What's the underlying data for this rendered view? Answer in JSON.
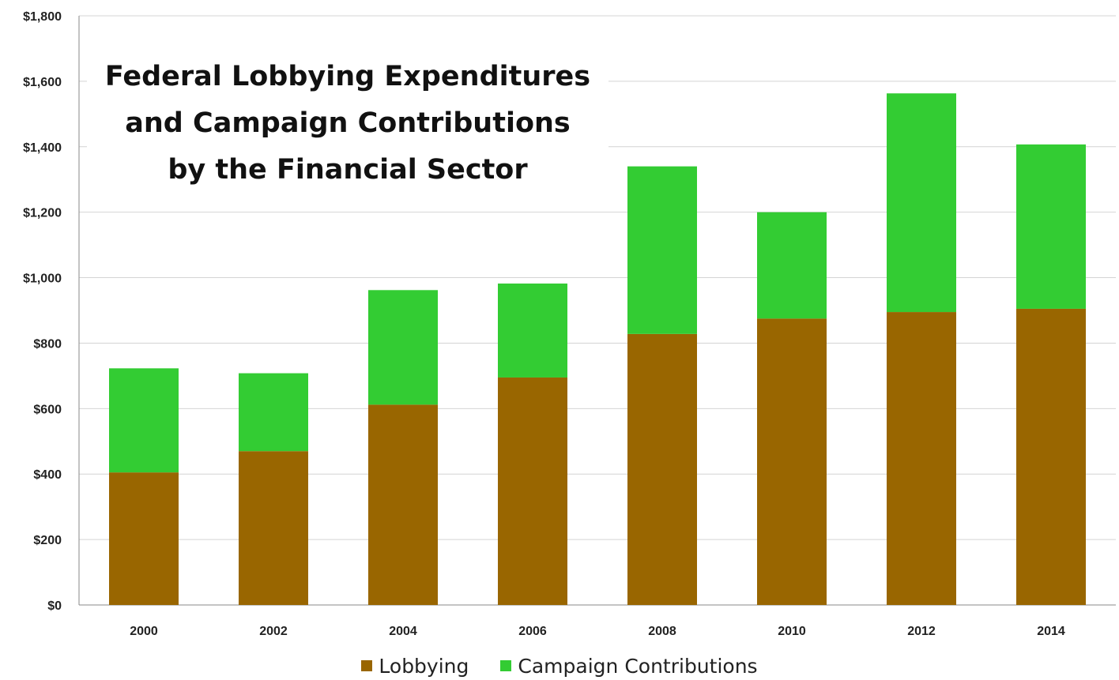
{
  "chart_data": {
    "type": "bar",
    "stacked": true,
    "title_lines": [
      "Federal Lobbying Expenditures",
      "and Campaign Contributions",
      "by the Financial Sector"
    ],
    "categories": [
      "2000",
      "2002",
      "2004",
      "2006",
      "2008",
      "2010",
      "2012",
      "2014"
    ],
    "series": [
      {
        "name": "Lobbying",
        "color": "#996600",
        "values": [
          405,
          470,
          612,
          695,
          828,
          875,
          895,
          905
        ]
      },
      {
        "name": "Campaign Contributions",
        "color": "#33cc33",
        "values": [
          318,
          238,
          350,
          287,
          512,
          325,
          668,
          502
        ]
      }
    ],
    "yticks": [
      "$0",
      "$200",
      "$400",
      "$600",
      "$800",
      "$1,000",
      "$1,200",
      "$1,400",
      "$1,600",
      "$1,800"
    ],
    "ylim": [
      0,
      1800
    ],
    "grid": true,
    "legend_position": "bottom"
  }
}
